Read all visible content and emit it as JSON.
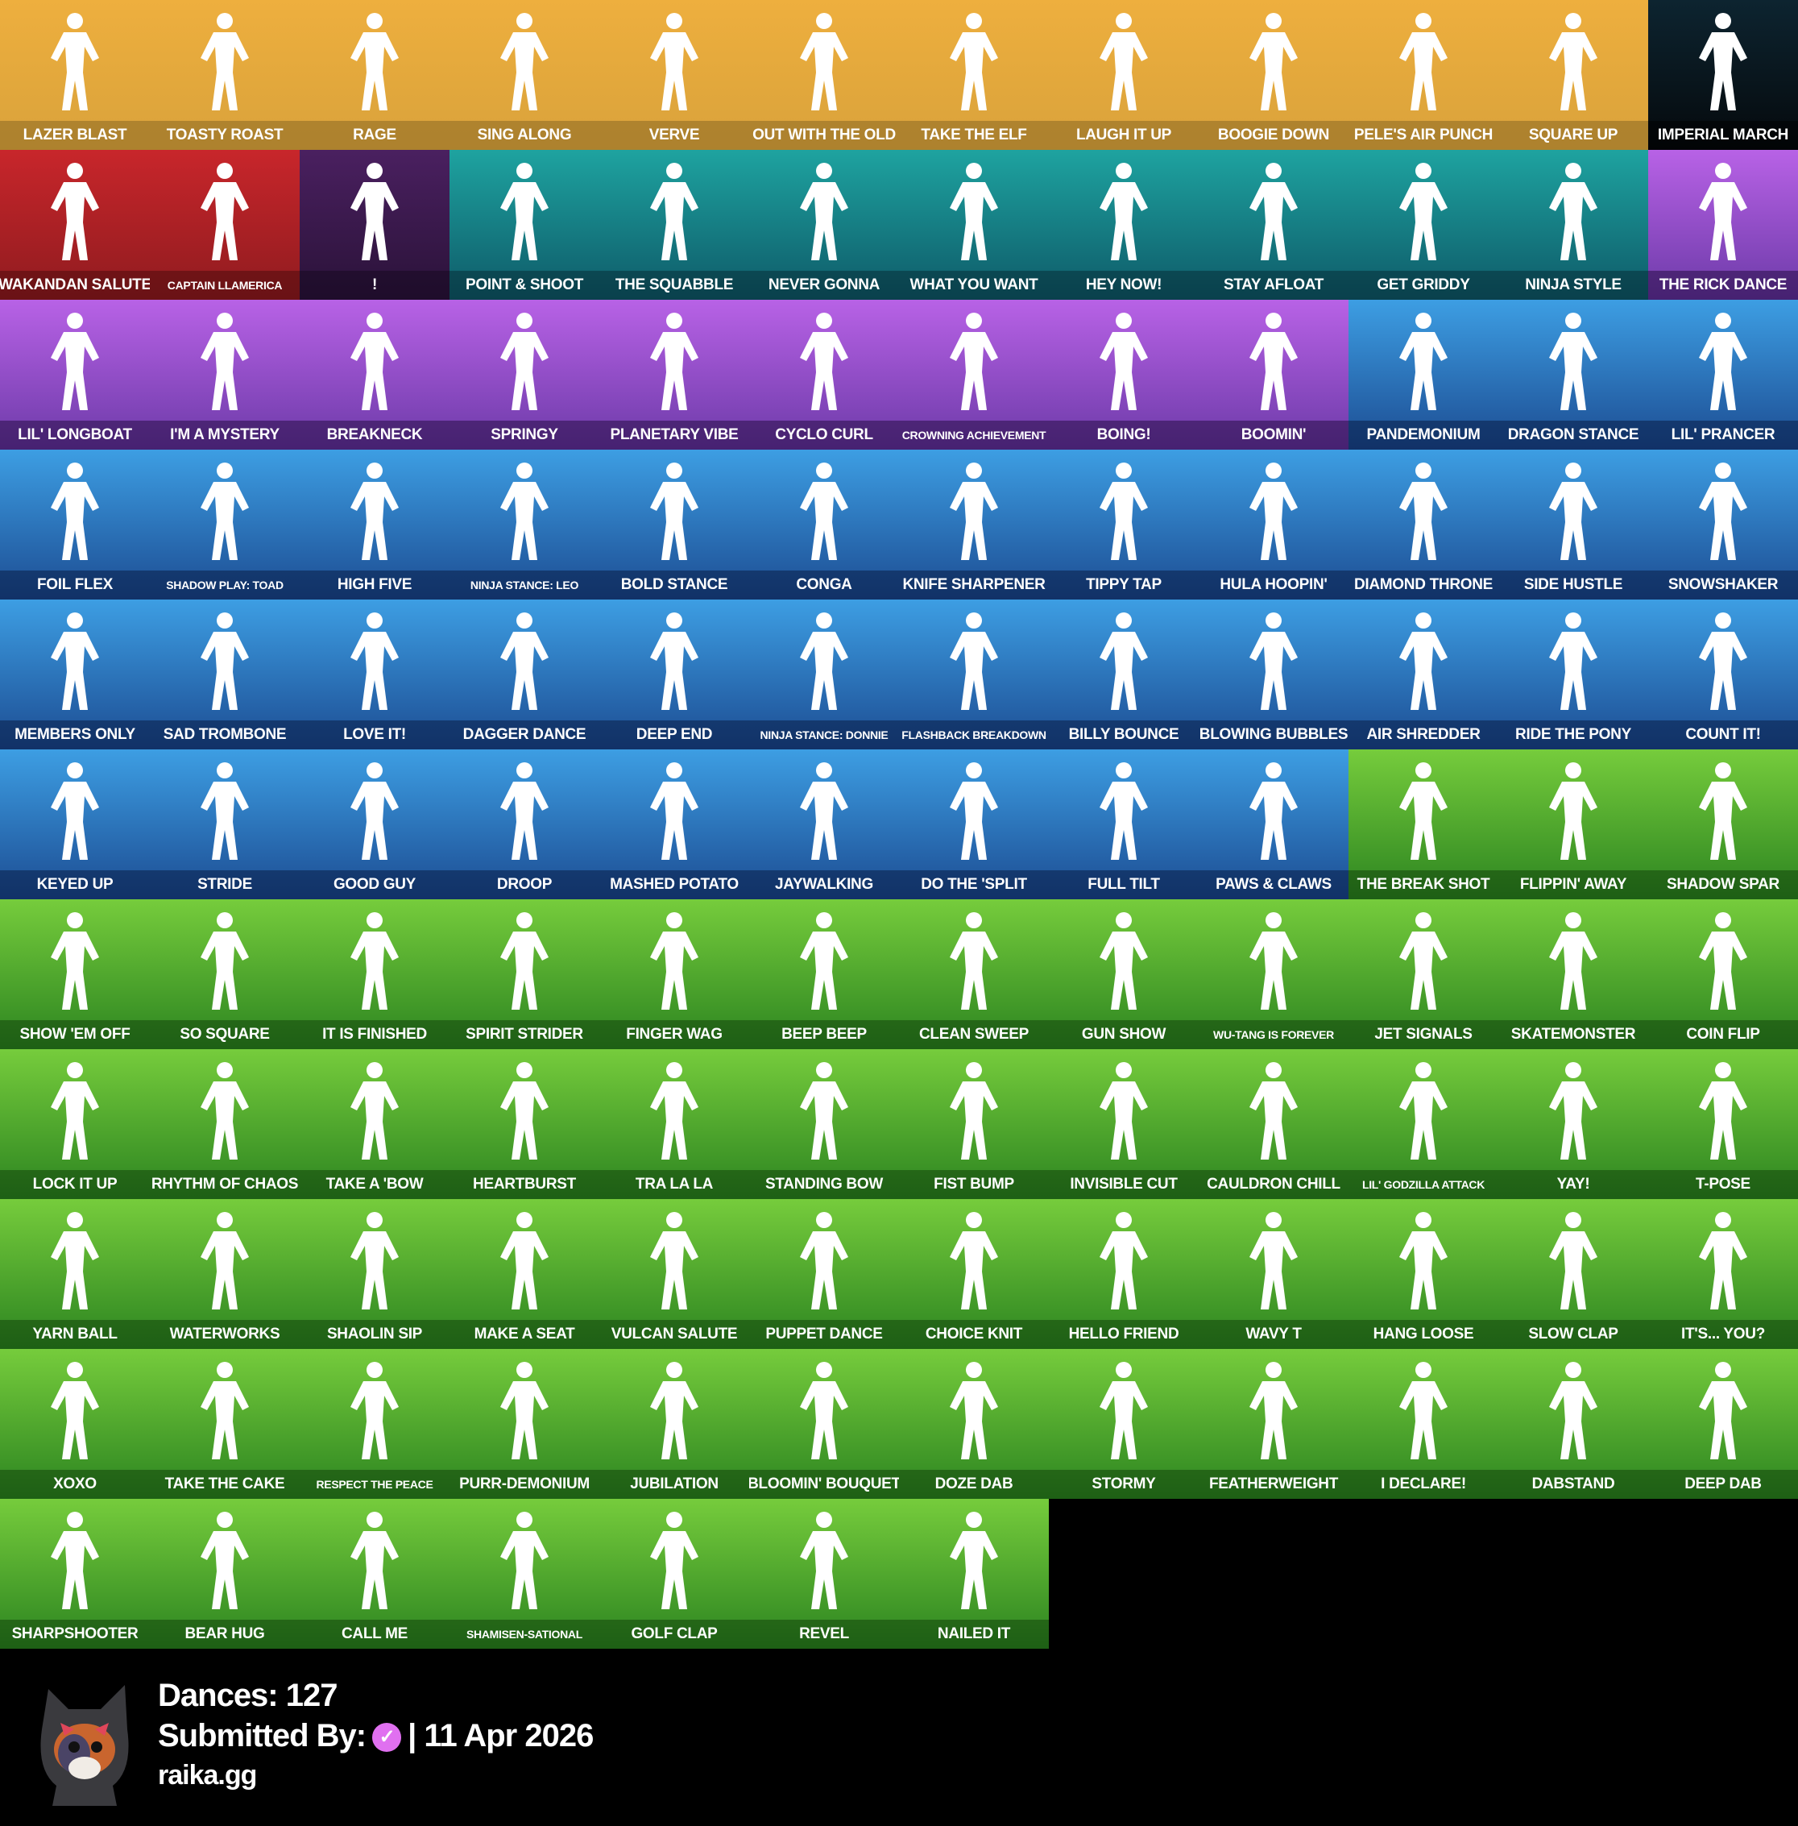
{
  "rarity_colors": {
    "gold": "#e9a93a",
    "starwars": "#0a1a20",
    "marvel": "#c2232a",
    "dark": "#3a1c4e",
    "icon": "#1f9a9a",
    "epic": "#b05de0",
    "rare": "#3c9be0",
    "uncommon": "#72c83a"
  },
  "emotes": [
    {
      "name": "LAZER BLAST",
      "rarity": "gold"
    },
    {
      "name": "TOASTY ROAST",
      "rarity": "gold"
    },
    {
      "name": "RAGE",
      "rarity": "gold"
    },
    {
      "name": "SING ALONG",
      "rarity": "gold"
    },
    {
      "name": "VERVE",
      "rarity": "gold"
    },
    {
      "name": "OUT WITH THE OLD",
      "rarity": "gold"
    },
    {
      "name": "TAKE THE ELF",
      "rarity": "gold"
    },
    {
      "name": "LAUGH IT UP",
      "rarity": "gold"
    },
    {
      "name": "BOOGIE DOWN",
      "rarity": "gold"
    },
    {
      "name": "PELE'S AIR PUNCH",
      "rarity": "gold"
    },
    {
      "name": "SQUARE UP",
      "rarity": "gold"
    },
    {
      "name": "IMPERIAL MARCH",
      "rarity": "starwars"
    },
    {
      "name": "WAKANDAN SALUTE",
      "rarity": "marvel"
    },
    {
      "name": "CAPTAIN LLAMERICA",
      "rarity": "marvel"
    },
    {
      "name": "!",
      "rarity": "dark"
    },
    {
      "name": "POINT & SHOOT",
      "rarity": "icon"
    },
    {
      "name": "THE SQUABBLE",
      "rarity": "icon"
    },
    {
      "name": "NEVER GONNA",
      "rarity": "icon"
    },
    {
      "name": "WHAT YOU WANT",
      "rarity": "icon"
    },
    {
      "name": "HEY NOW!",
      "rarity": "icon"
    },
    {
      "name": "STAY AFLOAT",
      "rarity": "icon"
    },
    {
      "name": "GET GRIDDY",
      "rarity": "icon"
    },
    {
      "name": "NINJA STYLE",
      "rarity": "icon"
    },
    {
      "name": "THE RICK DANCE",
      "rarity": "epic"
    },
    {
      "name": "LIL' LONGBOAT",
      "rarity": "epic"
    },
    {
      "name": "I'M A MYSTERY",
      "rarity": "epic"
    },
    {
      "name": "BREAKNECK",
      "rarity": "epic"
    },
    {
      "name": "SPRINGY",
      "rarity": "epic"
    },
    {
      "name": "PLANETARY VIBE",
      "rarity": "epic"
    },
    {
      "name": "CYCLO CURL",
      "rarity": "epic"
    },
    {
      "name": "CROWNING ACHIEVEMENT",
      "rarity": "epic"
    },
    {
      "name": "BOING!",
      "rarity": "epic"
    },
    {
      "name": "BOOMIN'",
      "rarity": "epic"
    },
    {
      "name": "PANDEMONIUM",
      "rarity": "rare"
    },
    {
      "name": "DRAGON STANCE",
      "rarity": "rare"
    },
    {
      "name": "LIL' PRANCER",
      "rarity": "rare"
    },
    {
      "name": "FOIL FLEX",
      "rarity": "rare"
    },
    {
      "name": "SHADOW PLAY: TOAD",
      "rarity": "rare"
    },
    {
      "name": "HIGH FIVE",
      "rarity": "rare"
    },
    {
      "name": "NINJA STANCE: LEO",
      "rarity": "rare"
    },
    {
      "name": "BOLD STANCE",
      "rarity": "rare"
    },
    {
      "name": "CONGA",
      "rarity": "rare"
    },
    {
      "name": "KNIFE SHARPENER",
      "rarity": "rare"
    },
    {
      "name": "TIPPY TAP",
      "rarity": "rare"
    },
    {
      "name": "HULA HOOPIN'",
      "rarity": "rare"
    },
    {
      "name": "DIAMOND THRONE",
      "rarity": "rare"
    },
    {
      "name": "SIDE HUSTLE",
      "rarity": "rare"
    },
    {
      "name": "SNOWSHAKER",
      "rarity": "rare"
    },
    {
      "name": "MEMBERS ONLY",
      "rarity": "rare"
    },
    {
      "name": "SAD TROMBONE",
      "rarity": "rare"
    },
    {
      "name": "LOVE IT!",
      "rarity": "rare"
    },
    {
      "name": "DAGGER DANCE",
      "rarity": "rare"
    },
    {
      "name": "DEEP END",
      "rarity": "rare"
    },
    {
      "name": "NINJA STANCE: DONNIE",
      "rarity": "rare"
    },
    {
      "name": "FLASHBACK BREAKDOWN",
      "rarity": "rare"
    },
    {
      "name": "BILLY BOUNCE",
      "rarity": "rare"
    },
    {
      "name": "BLOWING BUBBLES",
      "rarity": "rare"
    },
    {
      "name": "AIR SHREDDER",
      "rarity": "rare"
    },
    {
      "name": "RIDE THE PONY",
      "rarity": "rare"
    },
    {
      "name": "COUNT IT!",
      "rarity": "rare"
    },
    {
      "name": "KEYED UP",
      "rarity": "rare"
    },
    {
      "name": "STRIDE",
      "rarity": "rare"
    },
    {
      "name": "GOOD GUY",
      "rarity": "rare"
    },
    {
      "name": "DROOP",
      "rarity": "rare"
    },
    {
      "name": "MASHED POTATO",
      "rarity": "rare"
    },
    {
      "name": "JAYWALKING",
      "rarity": "rare"
    },
    {
      "name": "DO THE 'SPLIT",
      "rarity": "rare"
    },
    {
      "name": "FULL TILT",
      "rarity": "rare"
    },
    {
      "name": "PAWS & CLAWS",
      "rarity": "rare"
    },
    {
      "name": "THE BREAK SHOT",
      "rarity": "uncommon"
    },
    {
      "name": "FLIPPIN' AWAY",
      "rarity": "uncommon"
    },
    {
      "name": "SHADOW SPAR",
      "rarity": "uncommon"
    },
    {
      "name": "SHOW 'EM OFF",
      "rarity": "uncommon"
    },
    {
      "name": "SO SQUARE",
      "rarity": "uncommon"
    },
    {
      "name": "IT IS FINISHED",
      "rarity": "uncommon"
    },
    {
      "name": "SPIRIT STRIDER",
      "rarity": "uncommon"
    },
    {
      "name": "FINGER WAG",
      "rarity": "uncommon"
    },
    {
      "name": "BEEP BEEP",
      "rarity": "uncommon"
    },
    {
      "name": "CLEAN SWEEP",
      "rarity": "uncommon"
    },
    {
      "name": "GUN SHOW",
      "rarity": "uncommon"
    },
    {
      "name": "WU-TANG IS FOREVER",
      "rarity": "uncommon"
    },
    {
      "name": "JET SIGNALS",
      "rarity": "uncommon"
    },
    {
      "name": "SKATEMONSTER",
      "rarity": "uncommon"
    },
    {
      "name": "COIN FLIP",
      "rarity": "uncommon"
    },
    {
      "name": "LOCK IT UP",
      "rarity": "uncommon"
    },
    {
      "name": "RHYTHM OF CHAOS",
      "rarity": "uncommon"
    },
    {
      "name": "TAKE A 'BOW",
      "rarity": "uncommon"
    },
    {
      "name": "HEARTBURST",
      "rarity": "uncommon"
    },
    {
      "name": "TRA LA LA",
      "rarity": "uncommon"
    },
    {
      "name": "STANDING BOW",
      "rarity": "uncommon"
    },
    {
      "name": "FIST BUMP",
      "rarity": "uncommon"
    },
    {
      "name": "INVISIBLE CUT",
      "rarity": "uncommon"
    },
    {
      "name": "CAULDRON CHILL",
      "rarity": "uncommon"
    },
    {
      "name": "LIL' GODZILLA ATTACK",
      "rarity": "uncommon"
    },
    {
      "name": "YAY!",
      "rarity": "uncommon"
    },
    {
      "name": "T-POSE",
      "rarity": "uncommon"
    },
    {
      "name": "YARN BALL",
      "rarity": "uncommon"
    },
    {
      "name": "WATERWORKS",
      "rarity": "uncommon"
    },
    {
      "name": "SHAOLIN SIP",
      "rarity": "uncommon"
    },
    {
      "name": "MAKE A SEAT",
      "rarity": "uncommon"
    },
    {
      "name": "VULCAN SALUTE",
      "rarity": "uncommon"
    },
    {
      "name": "PUPPET DANCE",
      "rarity": "uncommon"
    },
    {
      "name": "CHOICE KNIT",
      "rarity": "uncommon"
    },
    {
      "name": "HELLO FRIEND",
      "rarity": "uncommon"
    },
    {
      "name": "WAVY T",
      "rarity": "uncommon"
    },
    {
      "name": "HANG LOOSE",
      "rarity": "uncommon"
    },
    {
      "name": "SLOW CLAP",
      "rarity": "uncommon"
    },
    {
      "name": "IT'S... YOU?",
      "rarity": "uncommon"
    },
    {
      "name": "XOXO",
      "rarity": "uncommon"
    },
    {
      "name": "TAKE THE CAKE",
      "rarity": "uncommon"
    },
    {
      "name": "RESPECT THE PEACE",
      "rarity": "uncommon"
    },
    {
      "name": "PURR-DEMONIUM",
      "rarity": "uncommon"
    },
    {
      "name": "JUBILATION",
      "rarity": "uncommon"
    },
    {
      "name": "BLOOMIN' BOUQUET",
      "rarity": "uncommon"
    },
    {
      "name": "DOZE DAB",
      "rarity": "uncommon"
    },
    {
      "name": "STORMY",
      "rarity": "uncommon"
    },
    {
      "name": "FEATHERWEIGHT",
      "rarity": "uncommon"
    },
    {
      "name": "I DECLARE!",
      "rarity": "uncommon"
    },
    {
      "name": "DABSTAND",
      "rarity": "uncommon"
    },
    {
      "name": "DEEP DAB",
      "rarity": "uncommon"
    },
    {
      "name": "SHARPSHOOTER",
      "rarity": "uncommon"
    },
    {
      "name": "BEAR HUG",
      "rarity": "uncommon"
    },
    {
      "name": "CALL ME",
      "rarity": "uncommon"
    },
    {
      "name": "SHAMISEN-SATIONAL",
      "rarity": "uncommon"
    },
    {
      "name": "GOLF CLAP",
      "rarity": "uncommon"
    },
    {
      "name": "REVEL",
      "rarity": "uncommon"
    },
    {
      "name": "NAILED IT",
      "rarity": "uncommon"
    }
  ],
  "footer": {
    "dances": "Dances: 127",
    "submitted_by": "Submitted By:",
    "verified_icon": "verified-badge-icon",
    "date": "| 11 Apr 2026",
    "site": "raika.gg"
  }
}
